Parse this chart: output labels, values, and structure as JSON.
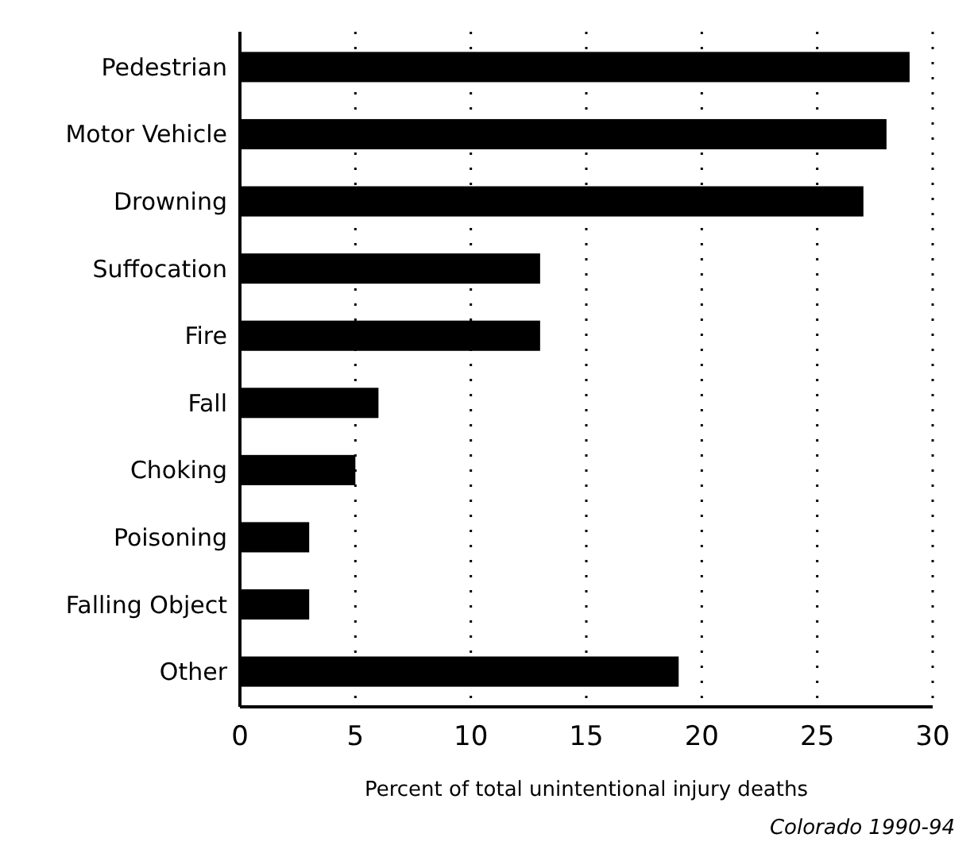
{
  "chart_data": {
    "type": "bar",
    "orientation": "horizontal",
    "xlabel": "Percent of total unintentional injury deaths",
    "categories": [
      "Pedestrian",
      "Motor Vehicle",
      "Drowning",
      "Suffocation",
      "Fire",
      "Fall",
      "Choking",
      "Poisoning",
      "Falling Object",
      "Other"
    ],
    "values": [
      29,
      28,
      27,
      13,
      13,
      6,
      5,
      3,
      3,
      19
    ],
    "color": "#000000",
    "xlim": [
      0,
      30
    ],
    "xticks": [
      0,
      5,
      10,
      15,
      20,
      25,
      30
    ],
    "grid": "x",
    "annotations": [
      "Colorado 1990-94"
    ]
  }
}
